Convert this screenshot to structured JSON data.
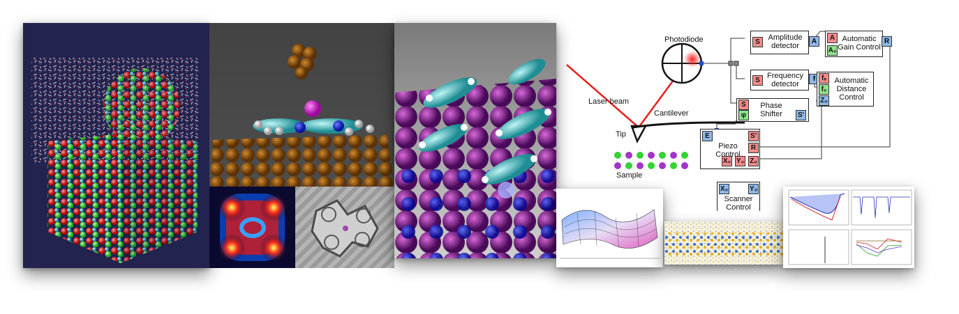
{
  "diagram": {
    "photodiode": "Photodiode",
    "laser_beam": "Laser beam",
    "cantilever": "Cantilever",
    "tip": "Tip",
    "sample": "Sample",
    "amplitude_detector": "Amplitude detector",
    "frequency_detector": "Frequency detector",
    "phase_shifter": "Phase Shifter",
    "automatic_gain_control": "Automatic Gain Control",
    "automatic_distance_control": "Automatic Distance Control",
    "piezo_control": "Piezo Control",
    "scanner_control": "Scanner Control",
    "ports": {
      "S": "S",
      "A": "A",
      "A0": "A₀",
      "R": "R",
      "f": "f",
      "fs": "fₛ",
      "f0": "f₀",
      "Z0": "Z₀",
      "phi": "φ",
      "Sprime": "S'",
      "E": "E",
      "X0": "X₀",
      "Y0": "Y₀"
    }
  },
  "colors": {
    "port_red": "#f28b8b",
    "port_blue": "#8fb7e6",
    "port_green": "#8fe38f",
    "laser": "#e8201c",
    "navy_bg": "#23234f"
  }
}
